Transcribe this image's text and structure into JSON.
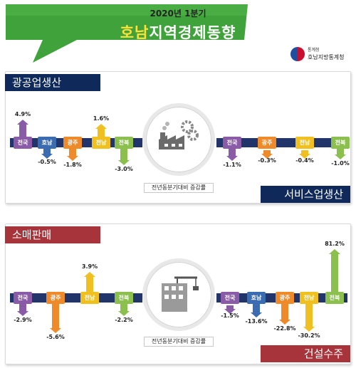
{
  "header": {
    "period": "2020년 1분기",
    "title_a": "호남",
    "title_b": "지역경제동향",
    "org_top": "통계청",
    "org_name": "호남지방통계청"
  },
  "colors": {
    "navy": "#0f2a5a",
    "maroon": "#a6343a",
    "banner": "#3fa23a",
    "up": "#8a5ca8",
    "down": "#3b6bb0",
    "orange": "#ef8a2b",
    "yellow": "#f0c020",
    "green": "#8bbf4e"
  },
  "panel1": {
    "left_title": "광공업생산",
    "right_title": "서비스업생산",
    "caption": "전년동분기대비 증감률",
    "left_items": [
      {
        "name": "전국",
        "value": "4.9%",
        "dir": "up",
        "color": "#8a5ca8"
      },
      {
        "name": "호남",
        "value": "-0.5%",
        "dir": "down",
        "color": "#3b6bb0"
      },
      {
        "name": "광주",
        "value": "-1.8%",
        "dir": "down",
        "color": "#ef8a2b"
      },
      {
        "name": "전남",
        "value": "1.6%",
        "dir": "up",
        "color": "#f0c020"
      },
      {
        "name": "전북",
        "value": "-3.0%",
        "dir": "down",
        "color": "#8bbf4e"
      }
    ],
    "right_items": [
      {
        "name": "전국",
        "value": "-1.1%",
        "dir": "down",
        "color": "#8a5ca8"
      },
      {
        "name": "광주",
        "value": "-0.3%",
        "dir": "down",
        "color": "#ef8a2b"
      },
      {
        "name": "전남",
        "value": "-0.4%",
        "dir": "down",
        "color": "#f0c020"
      },
      {
        "name": "전북",
        "value": "-1.0%",
        "dir": "down",
        "color": "#8bbf4e"
      }
    ]
  },
  "panel2": {
    "left_title": "소매판매",
    "right_title": "건설수주",
    "caption": "전년동분기대비 증감률",
    "left_items": [
      {
        "name": "전국",
        "value": "-2.9%",
        "dir": "down",
        "color": "#8a5ca8"
      },
      {
        "name": "광주",
        "value": "-5.6%",
        "dir": "down",
        "color": "#ef8a2b"
      },
      {
        "name": "전남",
        "value": "3.9%",
        "dir": "up",
        "color": "#f0c020"
      },
      {
        "name": "전북",
        "value": "-2.2%",
        "dir": "down",
        "color": "#8bbf4e"
      }
    ],
    "right_items": [
      {
        "name": "전국",
        "value": "-1.5%",
        "dir": "down",
        "color": "#8a5ca8"
      },
      {
        "name": "호남",
        "value": "-13.6%",
        "dir": "down",
        "color": "#3b6bb0"
      },
      {
        "name": "광주",
        "value": "-22.8%",
        "dir": "down",
        "color": "#ef8a2b"
      },
      {
        "name": "전남",
        "value": "-30.2%",
        "dir": "down",
        "color": "#f0c020"
      },
      {
        "name": "전북",
        "value": "81.2%",
        "dir": "up",
        "color": "#8bbf4e"
      }
    ]
  }
}
